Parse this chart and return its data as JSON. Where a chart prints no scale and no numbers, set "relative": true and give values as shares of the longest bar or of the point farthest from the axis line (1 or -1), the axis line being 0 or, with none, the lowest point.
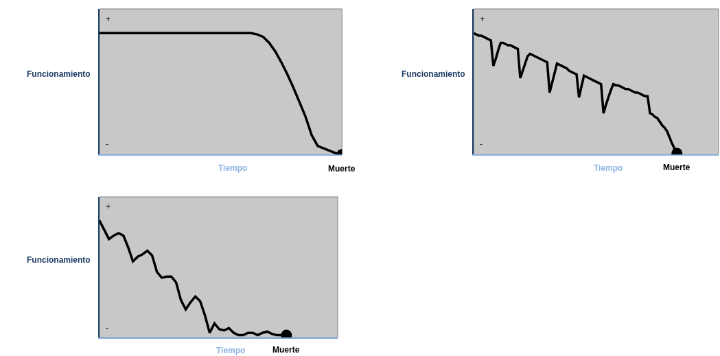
{
  "chart_data": [
    {
      "type": "line",
      "relative": true,
      "ylabel": "Funcionamiento",
      "xlabel": "Tiempo",
      "annotations": [
        "+",
        "-",
        "Muerte"
      ],
      "categories": [
        null,
        null,
        null,
        null,
        null,
        null,
        null,
        null,
        null,
        null,
        null,
        null,
        null,
        null,
        null,
        null,
        null,
        null,
        null,
        null,
        null,
        null,
        null,
        null,
        null,
        null,
        null,
        null,
        null,
        null,
        null,
        null,
        null,
        null,
        null,
        null,
        null,
        null,
        null,
        null,
        null
      ],
      "series": [
        {
          "color": "#000000",
          "values": [
            1,
            1,
            1,
            1,
            1,
            1,
            1,
            1,
            1,
            1,
            1,
            1,
            1,
            1,
            1,
            1,
            1,
            1,
            1,
            1,
            1,
            1,
            1,
            1,
            1,
            1,
            0.99,
            0.97,
            0.92,
            0.85,
            0.76,
            0.66,
            0.55,
            0.43,
            0.31,
            0.16,
            0.07,
            0.05,
            0.03,
            0.01,
            0
          ]
        }
      ]
    },
    {
      "type": "line",
      "relative": true,
      "ylabel": "Funcionamiento",
      "xlabel": "Tiempo",
      "annotations": [
        "+",
        "-",
        "Muerte"
      ],
      "categories": [
        null,
        null,
        null,
        null,
        null,
        null,
        null,
        null,
        null,
        null,
        null,
        null,
        null,
        null,
        null,
        null,
        null,
        null,
        null,
        null,
        null,
        null,
        null,
        null,
        null,
        null,
        null,
        null,
        null,
        null,
        null,
        null,
        null,
        null,
        null,
        null,
        null,
        null,
        null,
        null,
        null,
        null,
        null,
        null,
        null,
        null,
        null,
        null,
        null,
        null,
        null,
        null,
        null,
        null,
        null,
        null,
        null,
        null,
        null,
        null,
        null,
        null,
        null,
        null,
        null,
        null,
        null,
        null,
        null,
        null,
        null,
        null,
        null,
        null,
        null,
        null,
        null,
        null,
        null,
        null,
        null,
        null,
        null,
        null
      ],
      "series": [
        {
          "color": "#000000",
          "values": [
            1.0,
            0.99,
            0.98,
            0.98,
            0.97,
            0.96,
            0.95,
            0.94,
            0.73,
            0.79,
            0.86,
            0.92,
            0.92,
            0.91,
            0.9,
            0.9,
            0.89,
            0.88,
            0.87,
            0.63,
            0.69,
            0.75,
            0.81,
            0.83,
            0.82,
            0.81,
            0.8,
            0.79,
            0.78,
            0.77,
            0.76,
            0.51,
            0.59,
            0.67,
            0.75,
            0.74,
            0.73,
            0.72,
            0.71,
            0.69,
            0.68,
            0.67,
            0.66,
            0.47,
            0.56,
            0.65,
            0.64,
            0.63,
            0.62,
            0.61,
            0.6,
            0.59,
            0.58,
            0.34,
            0.41,
            0.47,
            0.53,
            0.58,
            0.57,
            0.57,
            0.56,
            0.55,
            0.54,
            0.54,
            0.53,
            0.52,
            0.51,
            0.51,
            0.5,
            0.49,
            0.48,
            0.48,
            0.34,
            0.33,
            0.31,
            0.3,
            0.27,
            0.24,
            0.22,
            0.19,
            0.14,
            0.09,
            0.05,
            0.01
          ]
        }
      ]
    },
    {
      "type": "line",
      "relative": true,
      "ylabel": "Funcionamiento",
      "xlabel": "Tiempo",
      "annotations": [
        "+",
        "-",
        "Muerte"
      ],
      "categories": [
        null,
        null,
        null,
        null,
        null,
        null,
        null,
        null,
        null,
        null,
        null,
        null,
        null,
        null,
        null,
        null,
        null,
        null,
        null,
        null,
        null,
        null,
        null,
        null,
        null,
        null,
        null,
        null,
        null,
        null,
        null,
        null,
        null,
        null,
        null,
        null,
        null,
        null,
        null,
        null
      ],
      "series": [
        {
          "color": "#000000",
          "values": [
            1.0,
            0.92,
            0.84,
            0.87,
            0.89,
            0.87,
            0.77,
            0.65,
            0.69,
            0.71,
            0.74,
            0.7,
            0.56,
            0.51,
            0.52,
            0.52,
            0.47,
            0.32,
            0.24,
            0.3,
            0.35,
            0.31,
            0.19,
            0.04,
            0.12,
            0.07,
            0.06,
            0.08,
            0.04,
            0.02,
            0.02,
            0.04,
            0.04,
            0.02,
            0.04,
            0.05,
            0.03,
            0.02,
            0.02,
            0.02
          ]
        }
      ]
    }
  ]
}
